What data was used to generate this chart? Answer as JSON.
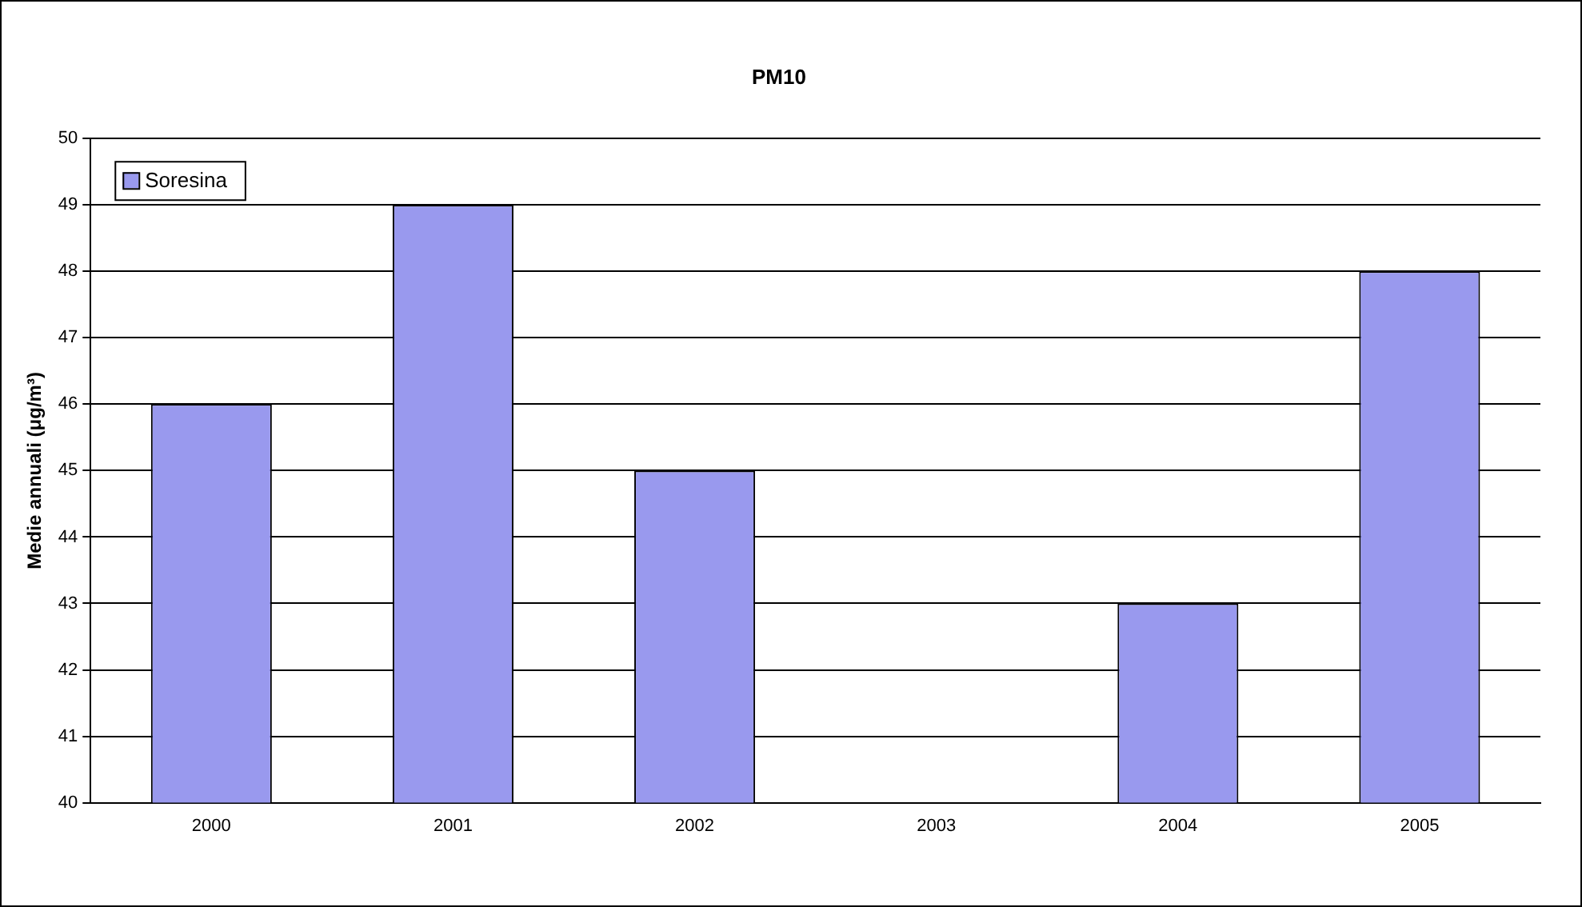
{
  "chart_data": {
    "type": "bar",
    "title": "PM10",
    "ylabel": "Medie annuali (μg/m³)",
    "categories": [
      "2000",
      "2001",
      "2002",
      "2003",
      "2004",
      "2005"
    ],
    "series": [
      {
        "name": "Soresina",
        "color": "#9999ee",
        "values": [
          46,
          49,
          45,
          null,
          43,
          48
        ]
      }
    ],
    "ylim": [
      40,
      50
    ],
    "yticks": [
      40,
      41,
      42,
      43,
      44,
      45,
      46,
      47,
      48,
      49,
      50
    ],
    "grid": "y",
    "legend": "top left"
  }
}
